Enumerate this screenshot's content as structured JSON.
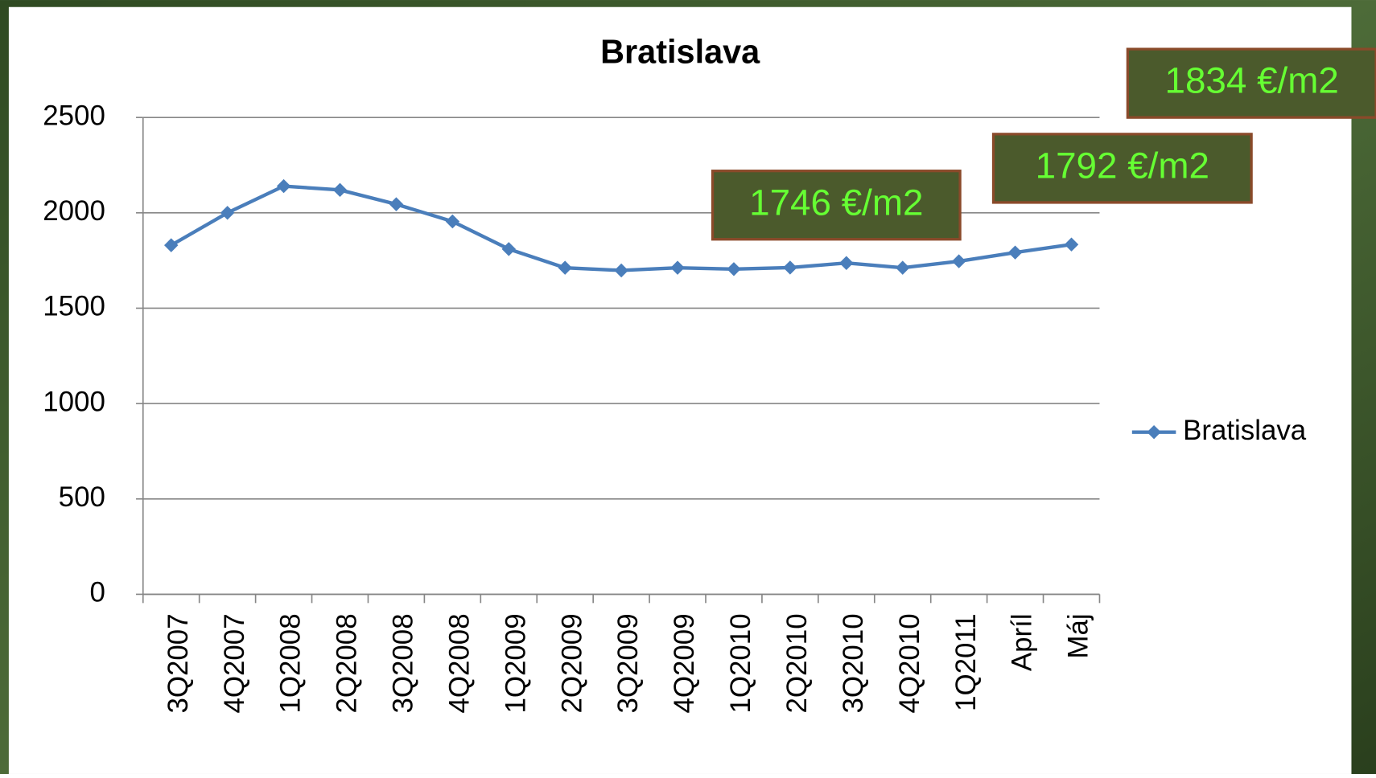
{
  "chart_data": {
    "type": "line",
    "title": "Bratislava",
    "categories": [
      "3Q2007",
      "4Q2007",
      "1Q2008",
      "2Q2008",
      "3Q2008",
      "4Q2008",
      "1Q2009",
      "2Q2009",
      "3Q2009",
      "4Q2009",
      "1Q2010",
      "2Q2010",
      "3Q2010",
      "4Q2010",
      "1Q2011",
      "Apríl",
      "Máj"
    ],
    "series": [
      {
        "name": "Bratislava",
        "color": "#4a7ebb",
        "values": [
          1830,
          2000,
          2140,
          2120,
          2045,
          1955,
          1810,
          1712,
          1698,
          1712,
          1705,
          1713,
          1737,
          1712,
          1746,
          1792,
          1834
        ]
      }
    ],
    "ylim": [
      0,
      2500
    ],
    "yticks": [
      0,
      500,
      1000,
      1500,
      2000,
      2500
    ],
    "grid": true,
    "legend": "right",
    "annotations": [
      "1746 €/m2",
      "1792 €/m2",
      "1834 €/m2"
    ]
  }
}
